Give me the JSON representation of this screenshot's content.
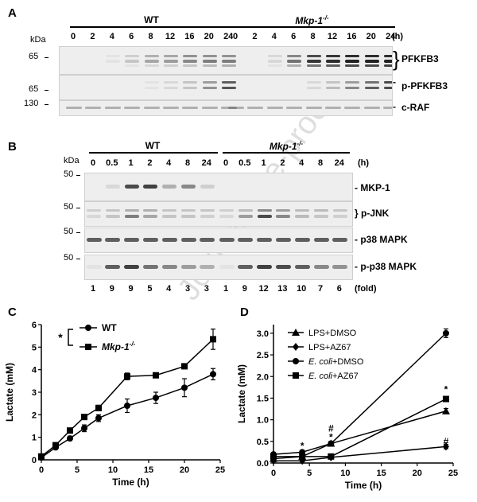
{
  "watermark": "Journal Pre-proof",
  "panelA": {
    "letter": "A",
    "kda_label": "kDa",
    "groups": [
      "WT",
      "Mkp-1-/-"
    ],
    "group_labels": {
      "wt": "WT",
      "ko_base": "Mkp-1",
      "ko_sup": "-/-"
    },
    "timepoints": [
      "0",
      "2",
      "4",
      "6",
      "8",
      "12",
      "16",
      "20",
      "24"
    ],
    "unit": "(h)",
    "blots": [
      {
        "name": "PFKFB3",
        "marker": "65",
        "bracket": "}",
        "label": "PFKFB3"
      },
      {
        "name": "p-PFKFB3",
        "marker": "65",
        "bracket": "-",
        "label": "p-PFKFB3"
      },
      {
        "name": "c-RAF",
        "marker": "130",
        "bracket": "-",
        "label": "c-RAF"
      }
    ]
  },
  "panelB": {
    "letter": "B",
    "kda_label": "kDa",
    "group_labels": {
      "wt": "WT",
      "ko_base": "Mkp-1",
      "ko_sup": "-/-"
    },
    "timepoints": [
      "0",
      "0.5",
      "1",
      "2",
      "4",
      "8",
      "24"
    ],
    "unit": "(h)",
    "blots": [
      {
        "name": "MKP-1",
        "marker": "50",
        "label": "- MKP-1"
      },
      {
        "name": "p-JNK",
        "marker": "50",
        "label": "} p-JNK"
      },
      {
        "name": "p38 MAPK",
        "marker": "50",
        "label": "- p38 MAPK"
      },
      {
        "name": "p-p38 MAPK",
        "marker": "50",
        "label": "- p-p38 MAPK"
      }
    ],
    "fold_values": [
      "1",
      "9",
      "9",
      "5",
      "4",
      "3",
      "3",
      "1",
      "9",
      "12",
      "13",
      "10",
      "7",
      "6"
    ],
    "fold_unit": "(fold)"
  },
  "chart_data": [
    {
      "panel": "C",
      "type": "line",
      "xlabel": "Time (h)",
      "ylabel": "Lactate (mM)",
      "xlim": [
        0,
        25
      ],
      "ylim": [
        0,
        6
      ],
      "xticks": [
        "0",
        "5",
        "10",
        "15",
        "20",
        "25"
      ],
      "yticks": [
        "0",
        "1",
        "2",
        "3",
        "4",
        "5",
        "6"
      ],
      "legend_placement": "top-left",
      "significance": "*",
      "series": [
        {
          "name": "WT",
          "marker": "circle",
          "x": [
            0,
            2,
            4,
            6,
            8,
            12,
            16,
            20,
            24
          ],
          "y": [
            0.1,
            0.55,
            0.95,
            1.4,
            1.85,
            2.4,
            2.75,
            3.2,
            3.8
          ],
          "err": [
            0.05,
            0.08,
            0.1,
            0.15,
            0.15,
            0.3,
            0.25,
            0.4,
            0.25
          ]
        },
        {
          "name": "Mkp-1-/-",
          "marker": "square",
          "x": [
            0,
            2,
            4,
            6,
            8,
            12,
            16,
            20,
            24
          ],
          "y": [
            0.15,
            0.65,
            1.3,
            1.9,
            2.3,
            3.7,
            3.75,
            4.15,
            5.35
          ],
          "err": [
            0.05,
            0.08,
            0.1,
            0.1,
            0.12,
            0.15,
            0.1,
            0.1,
            0.45
          ]
        }
      ],
      "legend_labels": {
        "wt": "WT",
        "ko_base": "Mkp-1",
        "ko_sup": "-/-"
      }
    },
    {
      "panel": "D",
      "type": "line",
      "xlabel": "Time (h)",
      "ylabel": "Lactate (mM)",
      "xlim": [
        0,
        25
      ],
      "ylim": [
        0,
        3.2
      ],
      "xticks": [
        "0",
        "5",
        "10",
        "15",
        "20",
        "25"
      ],
      "yticks": [
        "0.0",
        "0.5",
        "1.0",
        "1.5",
        "2.0",
        "2.5",
        "3.0"
      ],
      "legend_placement": "top-left",
      "series": [
        {
          "name": "LPS+DMSO",
          "marker": "triangle",
          "x": [
            0,
            4,
            8,
            24
          ],
          "y": [
            0.1,
            0.15,
            0.45,
            1.2
          ],
          "err": [
            0.02,
            0.03,
            0.04,
            0.06
          ]
        },
        {
          "name": "LPS+AZ67",
          "marker": "diamond",
          "x": [
            0,
            4,
            8,
            24
          ],
          "y": [
            0.05,
            0.05,
            0.13,
            0.38
          ],
          "err": [
            0.02,
            0.02,
            0.02,
            0.05
          ]
        },
        {
          "name": "E. coli+DMSO",
          "marker": "circle",
          "x": [
            0,
            4,
            8,
            24
          ],
          "y": [
            0.2,
            0.25,
            0.45,
            3.0
          ],
          "err": [
            0.03,
            0.04,
            0.05,
            0.1
          ]
        },
        {
          "name": "E. coli+AZ67",
          "marker": "square",
          "x": [
            0,
            4,
            8,
            24
          ],
          "y": [
            0.15,
            0.15,
            0.15,
            1.48
          ],
          "err": [
            0.02,
            0.02,
            0.02,
            0.05
          ]
        }
      ],
      "annotations": [
        {
          "x": 4,
          "y": 0.4,
          "text": "*"
        },
        {
          "x": 8,
          "y": 0.6,
          "text": "*"
        },
        {
          "x": 8,
          "y": 0.8,
          "text": "#"
        },
        {
          "x": 24,
          "y": 1.7,
          "text": "*"
        },
        {
          "x": 24,
          "y": 0.5,
          "text": "#"
        }
      ]
    }
  ]
}
